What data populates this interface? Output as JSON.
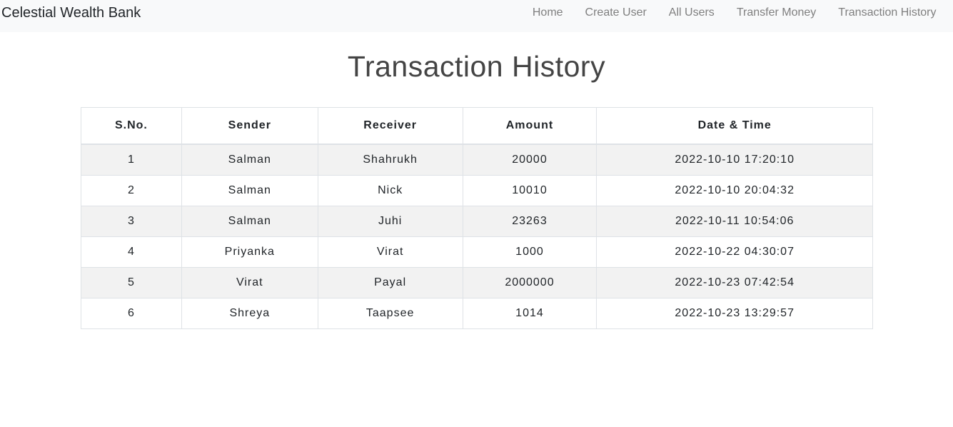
{
  "navbar": {
    "brand": "Celestial Wealth Bank",
    "links": [
      "Home",
      "Create User",
      "All Users",
      "Transfer Money",
      "Transaction History"
    ]
  },
  "page": {
    "title": "Transaction History"
  },
  "table": {
    "headers": [
      "S.No.",
      "Sender",
      "Receiver",
      "Amount",
      "Date & Time"
    ],
    "rows": [
      [
        "1",
        "Salman",
        "Shahrukh",
        "20000",
        "2022-10-10 17:20:10"
      ],
      [
        "2",
        "Salman",
        "Nick",
        "10010",
        "2022-10-10 20:04:32"
      ],
      [
        "3",
        "Salman",
        "Juhi",
        "23263",
        "2022-10-11 10:54:06"
      ],
      [
        "4",
        "Priyanka",
        "Virat",
        "1000",
        "2022-10-22 04:30:07"
      ],
      [
        "5",
        "Virat",
        "Payal",
        "2000000",
        "2022-10-23 07:42:54"
      ],
      [
        "6",
        "Shreya",
        "Taapsee",
        "1014",
        "2022-10-23 13:29:57"
      ]
    ]
  }
}
